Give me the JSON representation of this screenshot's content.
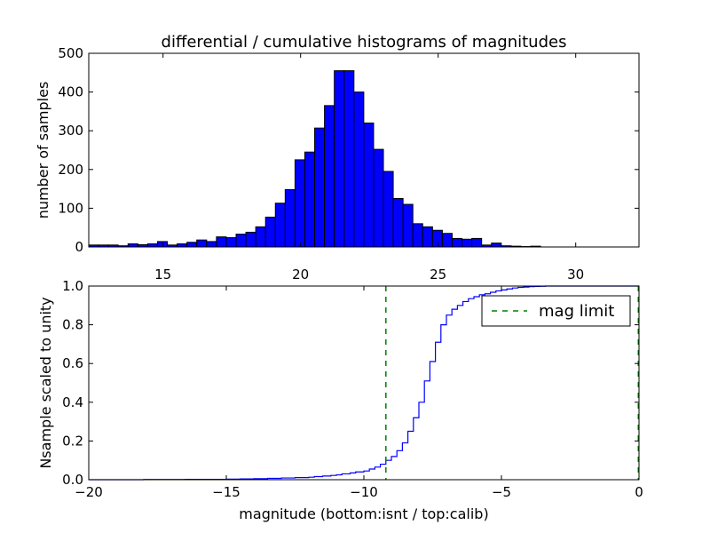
{
  "chart_data": [
    {
      "type": "bar",
      "title": "differential / cumulative histograms of magnitudes",
      "xlabel": "",
      "ylabel": "number of samples",
      "xlim": [
        12.3,
        32.3
      ],
      "ylim": [
        0,
        500
      ],
      "xticks": [
        15,
        20,
        25,
        30
      ],
      "yticks": [
        0,
        100,
        200,
        300,
        400,
        500
      ],
      "xtick_labels": [
        "15",
        "20",
        "25",
        "30"
      ],
      "ytick_labels": [
        "0",
        "100",
        "200",
        "300",
        "400",
        "500"
      ],
      "bar_color": "#0000ff",
      "bin_width": 0.357,
      "bin_starts": [
        12.3,
        12.657,
        13.014,
        13.371,
        13.728,
        14.085,
        14.442,
        14.799,
        15.156,
        15.513,
        15.87,
        16.227,
        16.584,
        16.941,
        17.298,
        17.655,
        18.012,
        18.369,
        18.726,
        19.083,
        19.44,
        19.797,
        20.154,
        20.511,
        20.868,
        21.225,
        21.582,
        21.939,
        22.296,
        22.653,
        23.01,
        23.367,
        23.724,
        24.081,
        24.438,
        24.795,
        25.152,
        25.509,
        25.866,
        26.223,
        26.58,
        26.937,
        27.294,
        27.651,
        28.008,
        28.365,
        28.722,
        29.079,
        29.436,
        29.793,
        30.15,
        30.507,
        30.864,
        31.221,
        31.578,
        31.935
      ],
      "values": [
        5,
        5,
        5,
        3,
        8,
        6,
        8,
        14,
        5,
        8,
        12,
        18,
        14,
        26,
        24,
        33,
        38,
        52,
        77,
        113,
        148,
        225,
        245,
        307,
        365,
        455,
        455,
        400,
        320,
        252,
        195,
        125,
        110,
        60,
        52,
        43,
        35,
        22,
        20,
        22,
        5,
        10,
        3,
        2,
        1,
        2,
        0,
        0,
        0,
        0,
        0,
        0,
        0,
        0,
        0,
        0
      ],
      "grid": false
    },
    {
      "type": "line",
      "title": "",
      "xlabel": "magnitude (bottom:isnt / top:calib)",
      "ylabel": "Nsample scaled to unity",
      "xlim": [
        -20,
        0
      ],
      "ylim": [
        0,
        1
      ],
      "xticks": [
        -20,
        -15,
        -10,
        -5,
        0
      ],
      "yticks": [
        0,
        0.2,
        0.4,
        0.6,
        0.8,
        1
      ],
      "xtick_labels": [
        "−20",
        "−15",
        "−10",
        "−5",
        "0"
      ],
      "ytick_labels": [
        "0.0",
        "0.2",
        "0.4",
        "0.6",
        "0.8",
        "1.0"
      ],
      "grid": false,
      "series": [
        {
          "style": "steps",
          "color": "#0000ff",
          "x": [
            -20.0,
            -18.0,
            -16.5,
            -15.0,
            -14.5,
            -14.0,
            -13.5,
            -13.0,
            -12.5,
            -12.0,
            -11.8,
            -11.5,
            -11.2,
            -11.0,
            -10.8,
            -10.5,
            -10.3,
            -10.0,
            -9.8,
            -9.6,
            -9.4,
            -9.2,
            -9.0,
            -8.8,
            -8.6,
            -8.4,
            -8.2,
            -8.0,
            -7.8,
            -7.6,
            -7.4,
            -7.2,
            -7.0,
            -6.8,
            -6.6,
            -6.4,
            -6.2,
            -6.0,
            -5.8,
            -5.6,
            -5.4,
            -5.2,
            -5.0,
            -4.8,
            -4.6,
            -4.4,
            -4.2,
            -4.0,
            -3.8,
            -3.6,
            -3.4,
            -3.2,
            -3.0,
            -2.5,
            0.0
          ],
          "values": [
            0,
            0.001,
            0.002,
            0.003,
            0.004,
            0.005,
            0.007,
            0.009,
            0.011,
            0.013,
            0.016,
            0.019,
            0.022,
            0.025,
            0.03,
            0.035,
            0.04,
            0.045,
            0.055,
            0.065,
            0.08,
            0.1,
            0.12,
            0.15,
            0.19,
            0.25,
            0.32,
            0.4,
            0.51,
            0.61,
            0.71,
            0.8,
            0.85,
            0.88,
            0.9,
            0.92,
            0.935,
            0.945,
            0.955,
            0.96,
            0.968,
            0.975,
            0.98,
            0.985,
            0.99,
            0.993,
            0.995,
            0.997,
            0.998,
            0.999,
            1.0,
            1.0,
            1.0,
            1.0,
            1.0
          ]
        },
        {
          "name": "mag limit",
          "style": "vline-dashed",
          "color": "#008000",
          "x": -9.2
        }
      ],
      "legend": {
        "position": "top-right",
        "label": "mag limit"
      }
    }
  ]
}
